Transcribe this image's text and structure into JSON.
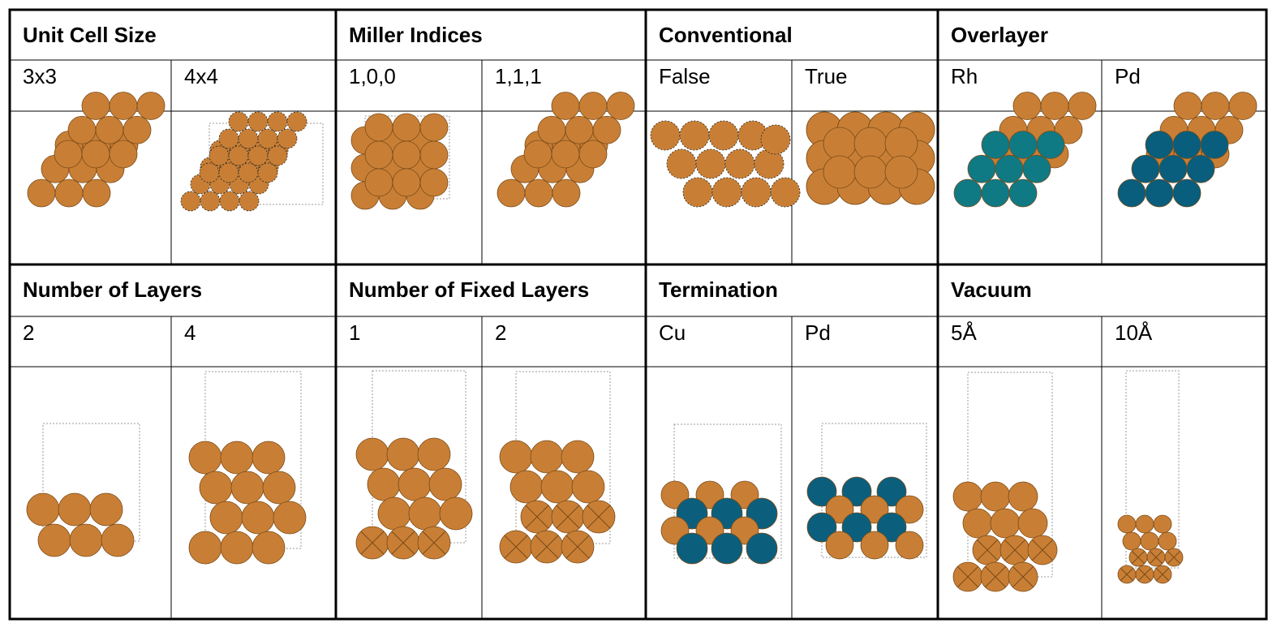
{
  "colors": {
    "base_atom": "#C87F35",
    "overlayer_rh": "#0F7A84",
    "overlayer_pd": "#085E7C",
    "termination_pd": "#0B5F7D",
    "atom_stroke": "#7A4A18",
    "grid_line": "#000000",
    "cell_outline": "#9A9A9A"
  },
  "panels": [
    {
      "id": "unit-cell-size",
      "header": "Unit Cell Size",
      "options": [
        "3x3",
        "4x4"
      ]
    },
    {
      "id": "miller-indices",
      "header": "Miller Indices",
      "options": [
        "1,0,0",
        "1,1,1"
      ]
    },
    {
      "id": "conventional",
      "header": "Conventional",
      "options": [
        "False",
        "True"
      ]
    },
    {
      "id": "overlayer",
      "header": "Overlayer",
      "options": [
        "Rh",
        "Pd"
      ]
    },
    {
      "id": "number-of-layers",
      "header": "Number of Layers",
      "options": [
        "2",
        "4"
      ]
    },
    {
      "id": "number-of-fixed-layers",
      "header": "Number of Fixed Layers",
      "options": [
        "1",
        "2"
      ]
    },
    {
      "id": "termination",
      "header": "Termination",
      "options": [
        "Cu",
        "Pd"
      ]
    },
    {
      "id": "vacuum",
      "header": "Vacuum",
      "options": [
        "5Å",
        "10Å"
      ]
    }
  ],
  "illustrations": {
    "unit-cell-size": [
      "3x3 slab top view",
      "4x4 slab top view"
    ],
    "miller-indices": [
      "(100) square lattice",
      "(111) hexagonal lattice"
    ],
    "conventional": [
      "non-conventional cell",
      "conventional cell"
    ],
    "overlayer": [
      "Rh overlayer",
      "Pd overlayer"
    ],
    "number-of-layers": [
      "2 layers",
      "4 layers"
    ],
    "number-of-fixed-layers": [
      "1 fixed layer",
      "2 fixed layers"
    ],
    "termination": [
      "Cu terminated",
      "Pd terminated"
    ],
    "vacuum": [
      "5 angstrom vacuum",
      "10 angstrom vacuum"
    ]
  }
}
